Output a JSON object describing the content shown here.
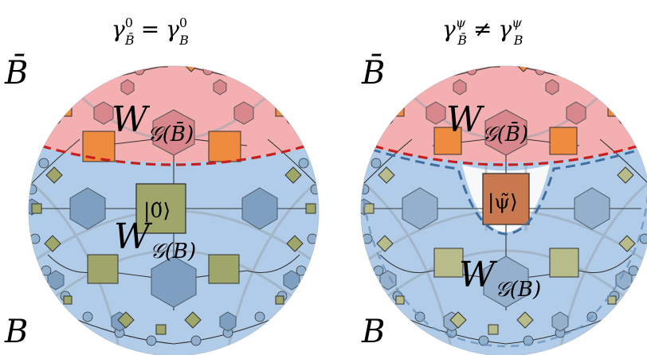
{
  "colors": {
    "region_Bbar": "#f4a6a8",
    "region_B": "#a9c7e6",
    "boundary_cut": "#c81e1e",
    "state_wedge": "#3f6fa0",
    "hexagon": "#7e9fc0",
    "square_olive": "#9ea66a",
    "square_orange": "#ee8b3f",
    "square_brown": "#c8794f",
    "hex_pink": "#d8888d",
    "network_line": "#333333",
    "geodesic": "#9aa4ae"
  },
  "left_panel": {
    "title": {
      "sym": "γ",
      "sub1": "B̄",
      "sup1": "0",
      "op": "=",
      "sub2": "B",
      "sup2": "0"
    },
    "label_top": "B̄",
    "label_bottom": "B",
    "upper_tensor": {
      "W": "W",
      "sub": "𝒢(B̄)"
    },
    "lower_tensor": {
      "W": "W",
      "sub": "𝒢(B)"
    },
    "state": "|0̃⟩"
  },
  "right_panel": {
    "title": {
      "sym": "γ",
      "sub1": "B̄",
      "sup1": "ψ",
      "op": "≠",
      "sub2": "B",
      "sup2": "ψ"
    },
    "label_top": "B̄",
    "label_bottom": "B",
    "upper_tensor": {
      "W": "W",
      "sub": "𝒢(B̄)"
    },
    "lower_tensor": {
      "W": "W",
      "sub": "𝒢(B)"
    },
    "state": "|ψ̃⟩"
  }
}
